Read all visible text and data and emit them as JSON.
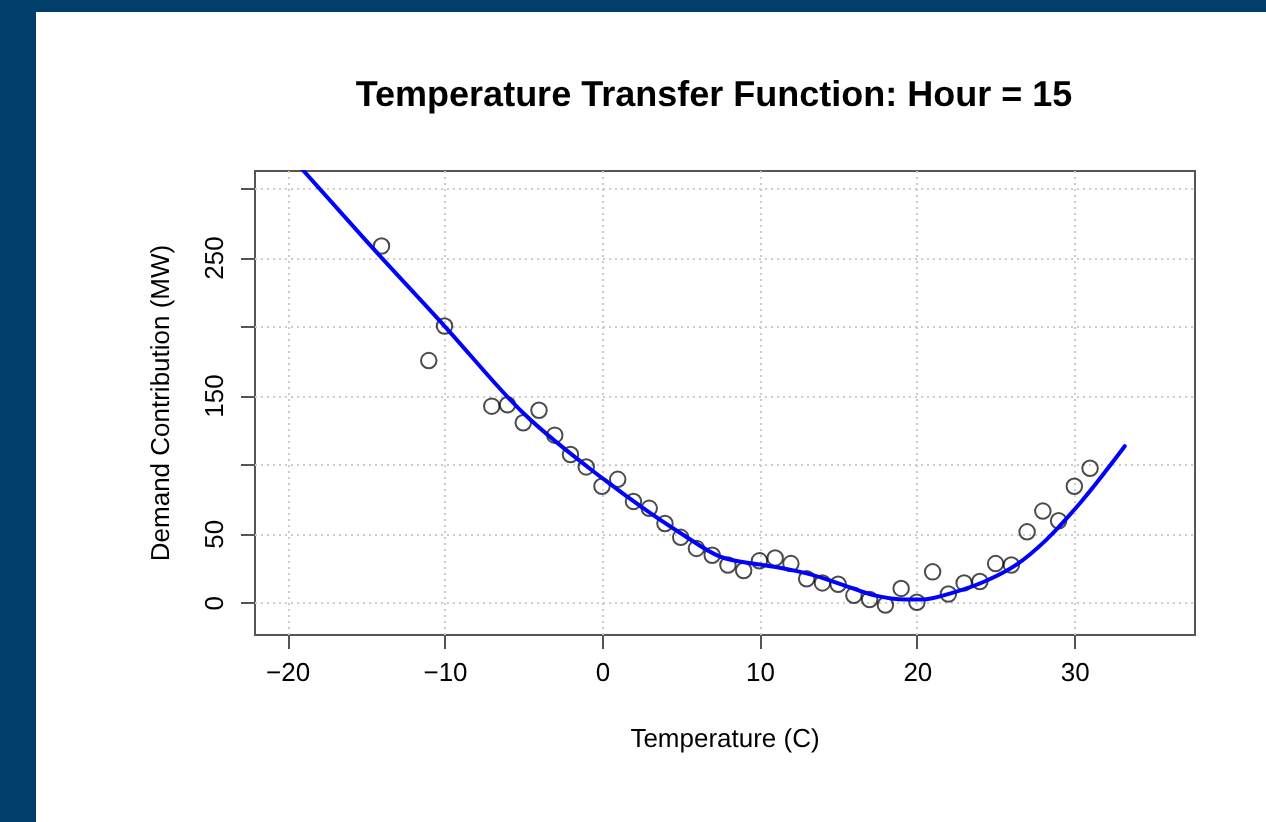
{
  "chart_data": {
    "type": "scatter",
    "title": "Temperature Transfer Function: Hour = 15",
    "xlabel": "Temperature (C)",
    "ylabel": "Demand Contribution (MW)",
    "xlim": [
      -22.1,
      37.6
    ],
    "ylim": [
      -23,
      313
    ],
    "xticks": [
      -20,
      -10,
      0,
      10,
      20,
      30
    ],
    "yticks": [
      0,
      50,
      {
        "value": 100,
        "label": null
      },
      150,
      {
        "value": 200,
        "label": null
      },
      250,
      {
        "value": 300,
        "label": null
      }
    ],
    "grid": true,
    "series": [
      {
        "type": "scatter",
        "marker": "circle",
        "color": "#000000",
        "x": [
          -14,
          -10,
          -11,
          -7,
          -6,
          -5,
          -4,
          -3,
          -2,
          -1,
          0,
          1,
          2,
          3,
          4,
          5,
          6,
          7,
          8,
          9,
          10,
          11,
          12,
          13,
          14,
          15,
          16,
          17,
          18,
          19,
          20,
          21,
          22,
          23,
          24,
          25,
          26,
          27,
          28,
          29,
          30,
          31
        ],
        "values": [
          258,
          200,
          175,
          142,
          143,
          130,
          139,
          121,
          107,
          98,
          84,
          89,
          73,
          68,
          57,
          47,
          39,
          34,
          27,
          23,
          30,
          32,
          28,
          17,
          14,
          13,
          5,
          2,
          -2,
          10,
          0,
          22,
          6,
          14,
          15,
          28,
          27,
          51,
          66,
          59,
          84,
          97
        ]
      },
      {
        "type": "line",
        "marker": "none",
        "color": "#0000ff",
        "x": [
          -19,
          -15,
          -10,
          -5,
          0,
          5,
          7.5,
          10.2,
          11.3,
          13.3,
          15.2,
          17.3,
          19.3,
          20.3,
          22.3,
          24.3,
          26.3,
          28.2,
          30.3,
          33.2
        ],
        "values": [
          313,
          262,
          200,
          137,
          90,
          50,
          33,
          27,
          25,
          20,
          13,
          5,
          2,
          2,
          7,
          15,
          27,
          45,
          71,
          113
        ]
      }
    ]
  }
}
